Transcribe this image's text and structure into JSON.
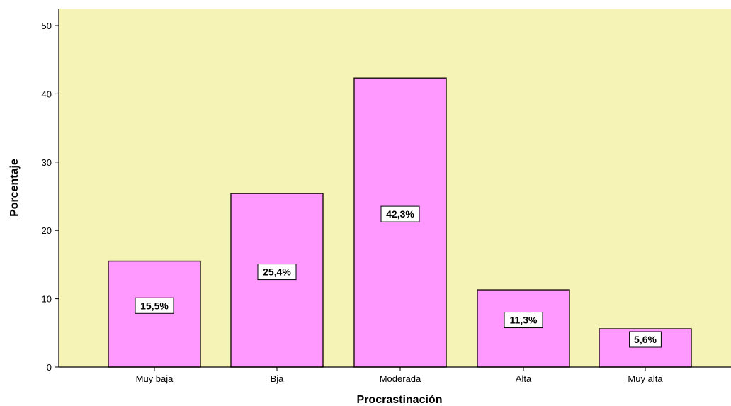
{
  "chart_data": {
    "type": "bar",
    "title": "",
    "xlabel": "Procrastinación",
    "ylabel": "Porcentaje",
    "categories": [
      "Muy baja",
      "Bja",
      "Moderada",
      "Alta",
      "Muy alta"
    ],
    "values": [
      15.5,
      25.4,
      42.3,
      11.3,
      5.6
    ],
    "data_labels": [
      "15,5%",
      "25,4%",
      "42,3%",
      "11,3%",
      "5,6%"
    ],
    "ylim": [
      0,
      52
    ],
    "yticks": [
      0,
      10,
      20,
      30,
      40,
      50
    ],
    "ytick_labels": [
      "0",
      "10",
      "20",
      "30",
      "40",
      "50"
    ],
    "grid": false,
    "colors": {
      "plot_background": "#f5f3b5",
      "bar_fill": "#ff99ff",
      "bar_stroke": "#2a1a1a",
      "label_box": "#ffffff"
    }
  }
}
